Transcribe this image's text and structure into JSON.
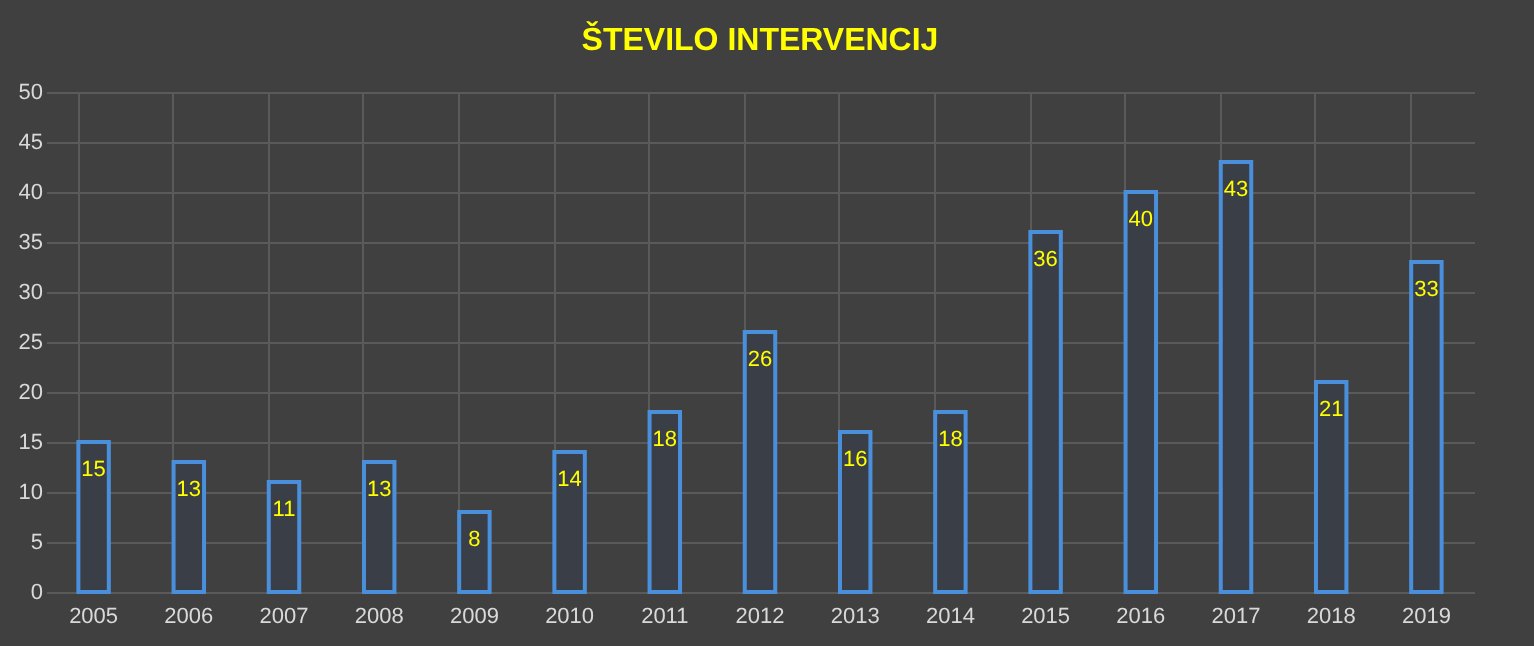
{
  "chart_data": {
    "type": "bar",
    "title": "ŠTEVILO INTERVENCIJ",
    "categories": [
      "2005",
      "2006",
      "2007",
      "2008",
      "2009",
      "2010",
      "2011",
      "2012",
      "2013",
      "2014",
      "2015",
      "2016",
      "2017",
      "2018",
      "2019"
    ],
    "values": [
      15,
      13,
      11,
      13,
      8,
      14,
      18,
      26,
      16,
      18,
      36,
      40,
      43,
      21,
      33
    ],
    "color": "#4a8fdc",
    "ylim": [
      0,
      50
    ],
    "yticks": [
      0,
      5,
      10,
      15,
      20,
      25,
      30,
      35,
      40,
      45,
      50
    ],
    "grid": true,
    "data_labels": true
  }
}
